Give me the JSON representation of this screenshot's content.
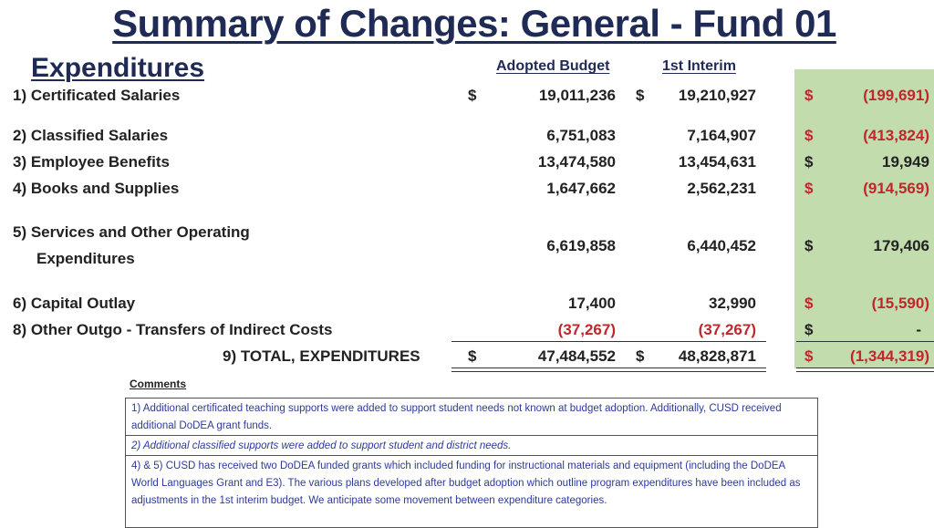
{
  "title": "Summary of Changes: General - Fund 01",
  "section": "Expenditures",
  "headers": {
    "adopted": "Adopted Budget",
    "interim": "1st Interim"
  },
  "rows": [
    {
      "label": "1) Certificated Salaries",
      "adopted": "19,011,236",
      "interim": "19,210,927",
      "diff": "(199,691)",
      "diff_sign": "$",
      "adopted_cur": "$",
      "interim_cur": "$"
    },
    {
      "label": "2) Classified Salaries",
      "adopted": "6,751,083",
      "interim": "7,164,907",
      "diff": "(413,824)",
      "diff_sign": "$"
    },
    {
      "label": "3) Employee Benefits",
      "adopted": "13,474,580",
      "interim": "13,454,631",
      "diff": "19,949",
      "diff_sign": "$"
    },
    {
      "label": "4) Books and Supplies",
      "adopted": "1,647,662",
      "interim": "2,562,231",
      "diff": "(914,569)",
      "diff_sign": "$"
    },
    {
      "label": "5) Services and Other Operating",
      "label2": "Expenditures",
      "adopted": "6,619,858",
      "interim": "6,440,452",
      "diff": "179,406",
      "diff_sign": "$"
    },
    {
      "label": "6) Capital Outlay",
      "adopted": "17,400",
      "interim": "32,990",
      "diff": "(15,590)",
      "diff_sign": "$"
    },
    {
      "label": "8) Other Outgo - Transfers of Indirect Costs",
      "adopted": "(37,267)",
      "interim": "(37,267)",
      "diff": "-",
      "diff_sign": "$"
    }
  ],
  "total": {
    "label": "9) TOTAL, EXPENDITURES",
    "cur": "$",
    "adopted": "47,484,552",
    "interim": "48,828,871",
    "diff": "(1,344,319)",
    "diff_sign": "$"
  },
  "comments_label": "Comments",
  "comments": [
    "1) Additional certificated teaching supports were added to support student needs not known at budget adoption. Additionally, CUSD received additional DoDEA grant funds.",
    "2) Additional classified supports were added to support student and district needs.",
    "4) & 5) CUSD has received two DoDEA funded grants which included funding for instructional materials and equipment (including the DoDEA World Languages Grant and E3). The various plans developed after budget adoption which outline program expenditures have been included as adjustments in the 1st interim budget. We anticipate some movement between expenditure categories."
  ],
  "colors": {
    "title": "#1f2a55",
    "negative": "#c0272d",
    "highlight": "#c3dcae",
    "comment_text": "#2d3b9a"
  }
}
